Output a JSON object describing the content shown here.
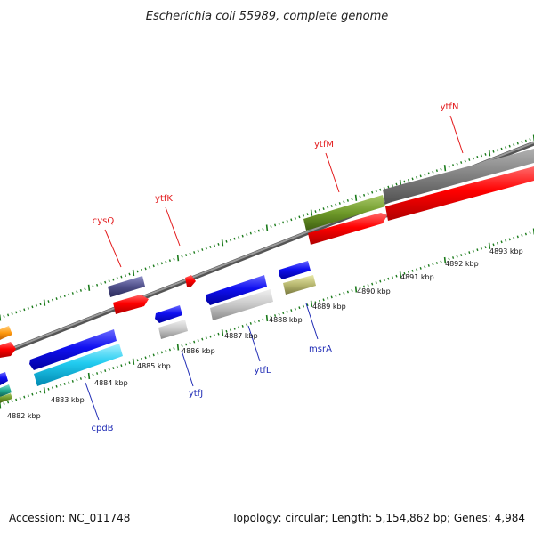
{
  "title": "Escherichia coli 55989, complete genome",
  "footer": {
    "accession": "Accession: NC_011748",
    "summary": "Topology: circular; Length: 5,154,862 bp; Genes: 4,984"
  },
  "kbp_labels": [
    "4882 kbp",
    "4883 kbp",
    "4884 kbp",
    "4885 kbp",
    "4886 kbp",
    "4887 kbp",
    "4888 kbp",
    "4889 kbp",
    "4890 kbp",
    "4891 kbp",
    "4892 kbp",
    "4893 kbp"
  ],
  "genes_forward": [
    "cysQ",
    "ytfK",
    "ytfM",
    "ytfN"
  ],
  "genes_reverse": [
    "cpdB",
    "ytfJ",
    "ytfL",
    "msrA"
  ],
  "colors": {
    "forward_label": "#e31a1c",
    "reverse_label": "#1f2bb5",
    "tick": "#1a7a1a",
    "backbone": "#7a7a7a"
  }
}
